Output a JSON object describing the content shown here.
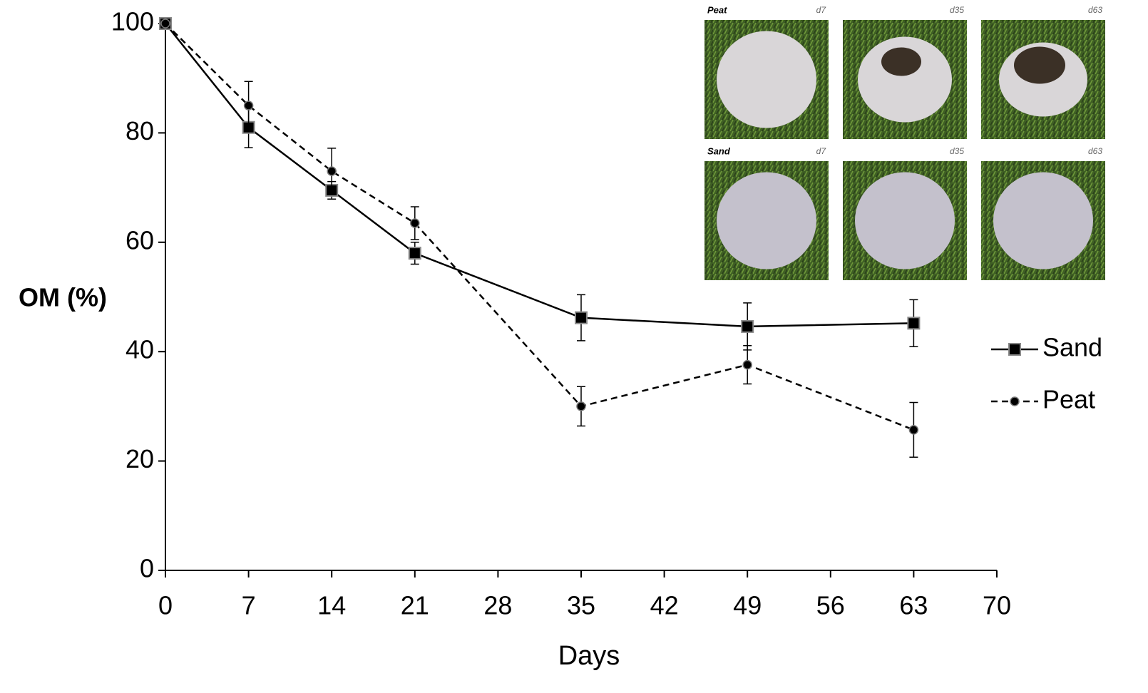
{
  "chart_data": {
    "type": "line",
    "xlabel": "Days",
    "ylabel": "OM (%)",
    "x": [
      0,
      7,
      14,
      21,
      35,
      49,
      63
    ],
    "series": [
      {
        "name": "Sand",
        "color": "#000000",
        "dash": "solid",
        "marker": "square",
        "values": [
          100,
          81,
          69.5,
          58,
          46.2,
          44.6,
          45.2
        ],
        "errors": [
          0,
          3.7,
          1.6,
          2,
          4.2,
          4.3,
          4.3
        ]
      },
      {
        "name": "Peat",
        "color": "#000000",
        "dash": "dashed",
        "marker": "circle",
        "values": [
          100,
          85,
          73,
          63.5,
          30,
          37.6,
          25.7
        ],
        "errors": [
          0,
          4.4,
          4.2,
          3,
          3.6,
          3.5,
          5
        ]
      }
    ],
    "xlim": [
      0,
      70
    ],
    "xticks": [
      0,
      7,
      14,
      21,
      28,
      35,
      42,
      49,
      56,
      63,
      70
    ],
    "ylim": [
      0,
      100
    ],
    "yticks": [
      0,
      20,
      40,
      60,
      80,
      100
    ],
    "legend": "right",
    "inset": {
      "rows": [
        {
          "label": "Peat",
          "days": [
            "d7",
            "d35",
            "d63"
          ]
        },
        {
          "label": "Sand",
          "days": [
            "d7",
            "d35",
            "d63"
          ]
        }
      ]
    }
  }
}
